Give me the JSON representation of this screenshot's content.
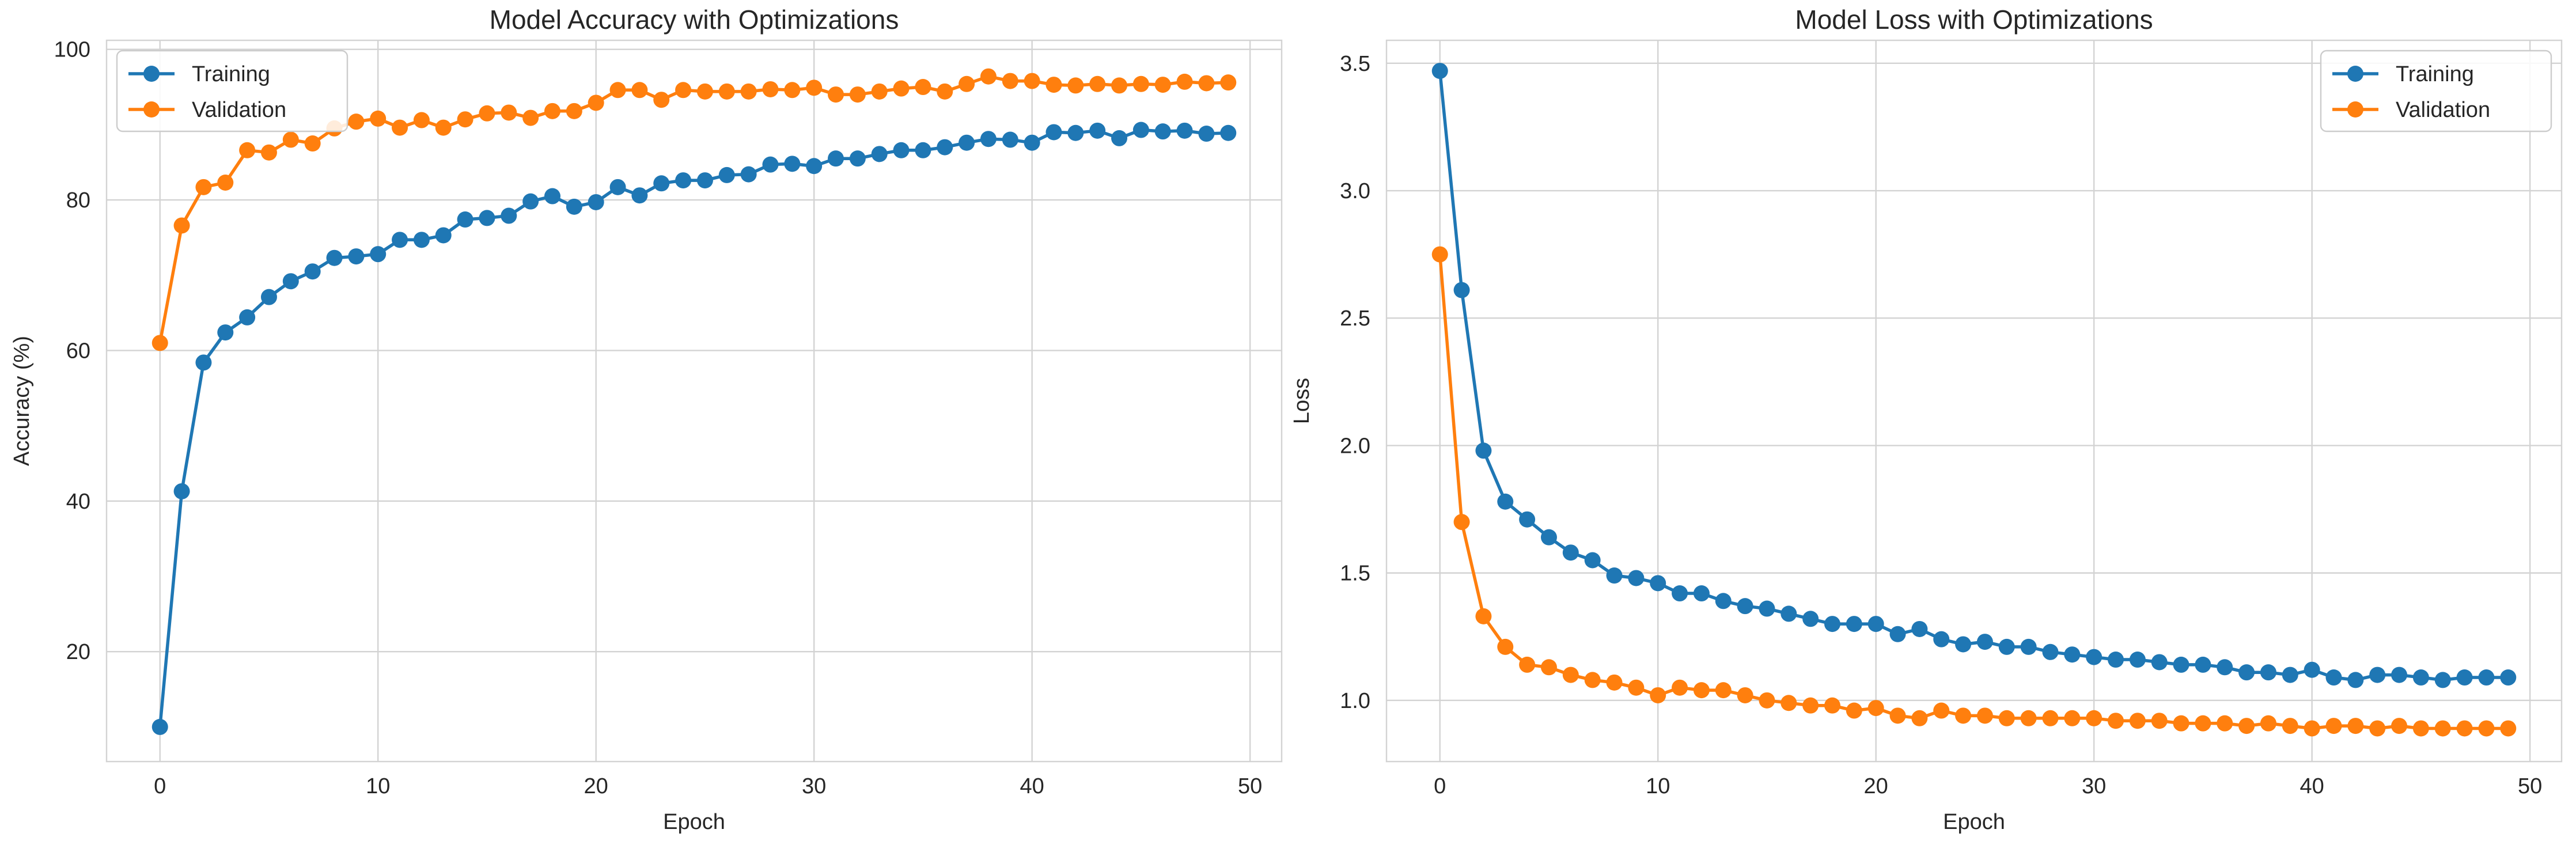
{
  "colors": {
    "training": "#1f77b4",
    "validation": "#ff7f0e",
    "grid": "#d3d3d3",
    "spine": "#d3d3d3"
  },
  "chart_data": [
    {
      "type": "line",
      "title": "Model Accuracy with Optimizations",
      "xlabel": "Epoch",
      "ylabel": "Accuracy (%)",
      "xlim": [
        -2.45,
        51.45
      ],
      "ylim": [
        5.4,
        101.2
      ],
      "xticks": [
        0,
        10,
        20,
        30,
        40,
        50
      ],
      "xtick_labels": [
        "0",
        "10",
        "20",
        "30",
        "40",
        "50"
      ],
      "yticks": [
        20,
        40,
        60,
        80,
        100
      ],
      "ytick_labels": [
        "20",
        "40",
        "60",
        "80",
        "100"
      ],
      "grid": true,
      "legend": "upper left",
      "x": [
        0,
        1,
        2,
        3,
        4,
        5,
        6,
        7,
        8,
        9,
        10,
        11,
        12,
        13,
        14,
        15,
        16,
        17,
        18,
        19,
        20,
        21,
        22,
        23,
        24,
        25,
        26,
        27,
        28,
        29,
        30,
        31,
        32,
        33,
        34,
        35,
        36,
        37,
        38,
        39,
        40,
        41,
        42,
        43,
        44,
        45,
        46,
        47,
        48,
        49
      ],
      "series": [
        {
          "name": "Training",
          "values": [
            10.0,
            41.3,
            58.4,
            62.4,
            64.4,
            67.1,
            69.2,
            70.5,
            72.3,
            72.5,
            72.8,
            74.7,
            74.7,
            75.3,
            77.4,
            77.6,
            77.9,
            79.8,
            80.5,
            79.1,
            79.7,
            81.7,
            80.6,
            82.2,
            82.6,
            82.6,
            83.3,
            83.4,
            84.7,
            84.8,
            84.5,
            85.5,
            85.5,
            86.1,
            86.6,
            86.6,
            87.0,
            87.6,
            88.1,
            88.0,
            87.6,
            89.0,
            88.9,
            89.2,
            88.2,
            89.3,
            89.1,
            89.2,
            88.8,
            88.9
          ]
        },
        {
          "name": "Validation",
          "values": [
            61.0,
            76.6,
            81.7,
            82.3,
            86.6,
            86.3,
            88.0,
            87.5,
            89.5,
            90.4,
            90.8,
            89.6,
            90.6,
            89.6,
            90.7,
            91.5,
            91.6,
            90.9,
            91.8,
            91.8,
            92.9,
            94.6,
            94.6,
            93.3,
            94.6,
            94.4,
            94.4,
            94.4,
            94.7,
            94.6,
            94.9,
            94.0,
            94.0,
            94.4,
            94.8,
            95.0,
            94.4,
            95.4,
            96.4,
            95.8,
            95.8,
            95.3,
            95.2,
            95.4,
            95.2,
            95.4,
            95.3,
            95.7,
            95.5,
            95.6
          ]
        }
      ]
    },
    {
      "type": "line",
      "title": "Model Loss with Optimizations",
      "xlabel": "Epoch",
      "ylabel": "Loss",
      "xlim": [
        -2.45,
        51.45
      ],
      "ylim": [
        0.76,
        3.59
      ],
      "xticks": [
        0,
        10,
        20,
        30,
        40,
        50
      ],
      "xtick_labels": [
        "0",
        "10",
        "20",
        "30",
        "40",
        "50"
      ],
      "yticks": [
        1.0,
        1.5,
        2.0,
        2.5,
        3.0,
        3.5
      ],
      "ytick_labels": [
        "1.0",
        "1.5",
        "2.0",
        "2.5",
        "3.0",
        "3.5"
      ],
      "grid": true,
      "legend": "upper right",
      "x": [
        0,
        1,
        2,
        3,
        4,
        5,
        6,
        7,
        8,
        9,
        10,
        11,
        12,
        13,
        14,
        15,
        16,
        17,
        18,
        19,
        20,
        21,
        22,
        23,
        24,
        25,
        26,
        27,
        28,
        29,
        30,
        31,
        32,
        33,
        34,
        35,
        36,
        37,
        38,
        39,
        40,
        41,
        42,
        43,
        44,
        45,
        46,
        47,
        48,
        49
      ],
      "series": [
        {
          "name": "Training",
          "values": [
            3.47,
            2.61,
            1.98,
            1.78,
            1.71,
            1.64,
            1.58,
            1.55,
            1.49,
            1.48,
            1.46,
            1.42,
            1.42,
            1.39,
            1.37,
            1.36,
            1.34,
            1.32,
            1.3,
            1.3,
            1.3,
            1.26,
            1.28,
            1.24,
            1.22,
            1.23,
            1.21,
            1.21,
            1.19,
            1.18,
            1.17,
            1.16,
            1.16,
            1.15,
            1.14,
            1.14,
            1.13,
            1.11,
            1.11,
            1.1,
            1.12,
            1.09,
            1.08,
            1.1,
            1.1,
            1.09,
            1.08,
            1.09,
            1.09,
            1.09
          ]
        },
        {
          "name": "Validation",
          "values": [
            2.75,
            1.7,
            1.33,
            1.21,
            1.14,
            1.13,
            1.1,
            1.08,
            1.07,
            1.05,
            1.02,
            1.05,
            1.04,
            1.04,
            1.02,
            1.0,
            0.99,
            0.98,
            0.98,
            0.96,
            0.97,
            0.94,
            0.93,
            0.96,
            0.94,
            0.94,
            0.93,
            0.93,
            0.93,
            0.93,
            0.93,
            0.92,
            0.92,
            0.92,
            0.91,
            0.91,
            0.91,
            0.9,
            0.91,
            0.9,
            0.89,
            0.9,
            0.9,
            0.89,
            0.9,
            0.89,
            0.89,
            0.89,
            0.89,
            0.89
          ]
        }
      ]
    }
  ]
}
